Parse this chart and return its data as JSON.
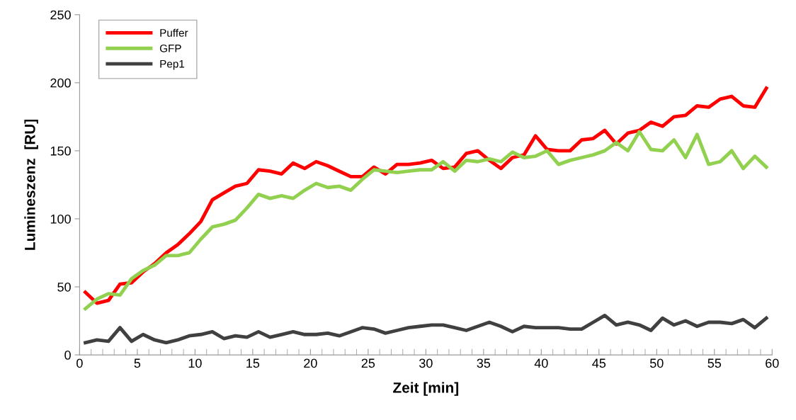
{
  "chart_data": {
    "type": "line",
    "xlabel": "Zeit [min]",
    "ylabel": "Lumineszenz  [RU]",
    "x": [
      0.5,
      1.5,
      2.5,
      3.5,
      4.5,
      5.5,
      6.5,
      7.5,
      8.5,
      9.5,
      10.5,
      11.5,
      12.5,
      13.5,
      14.5,
      15.5,
      16.5,
      17.5,
      18.5,
      19.5,
      20.5,
      21.5,
      22.5,
      23.5,
      24.5,
      25.5,
      26.5,
      27.5,
      28.5,
      29.5,
      30.5,
      31.5,
      32.5,
      33.5,
      34.5,
      35.5,
      36.5,
      37.5,
      38.5,
      39.5,
      40.5,
      41.5,
      42.5,
      43.5,
      44.5,
      45.5,
      46.5,
      47.5,
      48.5,
      49.5,
      50.5,
      51.5,
      52.5,
      53.5,
      54.5,
      55.5,
      56.5,
      57.5,
      58.5,
      59.5
    ],
    "series": [
      {
        "name": "Puffer",
        "color": "#ff0000",
        "values": [
          46,
          38,
          40,
          52,
          53,
          61,
          67,
          75,
          81,
          89,
          98,
          114,
          119,
          124,
          126,
          136,
          135,
          133,
          141,
          137,
          142,
          139,
          135,
          131,
          131,
          138,
          133,
          140,
          140,
          141,
          143,
          137,
          138,
          148,
          150,
          143,
          137,
          145,
          147,
          161,
          151,
          150,
          150,
          158,
          159,
          165,
          155,
          163,
          165,
          171,
          168,
          175,
          176,
          183,
          182,
          188,
          190,
          183,
          182,
          196
        ]
      },
      {
        "name": "GFP",
        "color": "#92d050",
        "values": [
          34,
          41,
          45,
          44,
          56,
          62,
          66,
          73,
          73,
          75,
          85,
          94,
          96,
          99,
          108,
          118,
          115,
          117,
          115,
          121,
          126,
          123,
          124,
          121,
          129,
          136,
          135,
          134,
          135,
          136,
          136,
          142,
          135,
          143,
          142,
          144,
          142,
          149,
          145,
          146,
          150,
          140,
          143,
          145,
          147,
          150,
          156,
          150,
          164,
          151,
          150,
          158,
          145,
          162,
          140,
          142,
          150,
          137,
          146,
          138
        ]
      },
      {
        "name": "Pep1",
        "color": "#404040",
        "values": [
          9,
          11,
          10,
          20,
          10,
          15,
          11,
          9,
          11,
          14,
          15,
          17,
          12,
          14,
          13,
          17,
          13,
          15,
          17,
          15,
          15,
          16,
          14,
          17,
          20,
          19,
          16,
          18,
          20,
          21,
          22,
          22,
          20,
          18,
          21,
          24,
          21,
          17,
          21,
          20,
          20,
          20,
          19,
          19,
          24,
          29,
          22,
          24,
          22,
          18,
          27,
          22,
          25,
          21,
          24,
          24,
          23,
          26,
          20,
          27
        ]
      }
    ],
    "xlim": [
      0,
      60
    ],
    "xticks": [
      0,
      5,
      10,
      15,
      20,
      25,
      30,
      35,
      40,
      45,
      50,
      55,
      60
    ],
    "ylim": [
      0,
      250
    ],
    "yticks": [
      0,
      50,
      100,
      150,
      200,
      250
    ],
    "grid": false,
    "legend": "top left",
    "marker": "none",
    "line_style": "solid"
  }
}
